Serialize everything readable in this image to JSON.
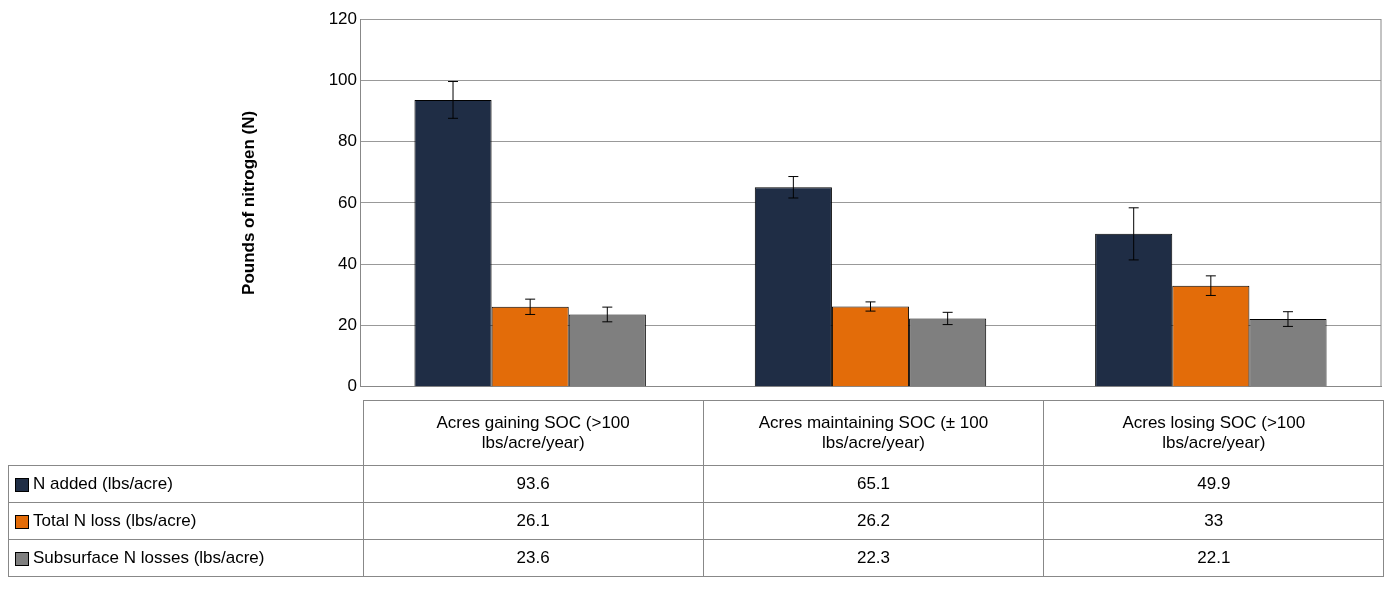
{
  "chart_data": {
    "type": "bar",
    "ylabel": "Pounds of nitrogen (N)",
    "categories": [
      "Acres gaining SOC (>100 lbs/acre/year)",
      "Acres maintaining SOC (± 100 lbs/acre/year)",
      "Acres losing SOC (>100 lbs/acre/year)"
    ],
    "series": [
      {
        "name": "N added (lbs/acre)",
        "color": "#1f2d45",
        "values": [
          93.6,
          65.1,
          49.9
        ],
        "errors": [
          6,
          3.5,
          8.5
        ]
      },
      {
        "name": "Total N loss (lbs/acre)",
        "color": "#e36c09",
        "values": [
          26.1,
          26.2,
          33
        ],
        "errors": [
          2.5,
          1.5,
          3.2
        ]
      },
      {
        "name": "Subsurface N losses (lbs/acre)",
        "color": "#7f7f7f",
        "values": [
          23.6,
          22.3,
          22.1
        ],
        "errors": [
          2.4,
          2,
          2.4
        ]
      }
    ],
    "ylim": [
      0,
      120
    ],
    "yticks": [
      0,
      20,
      40,
      60,
      80,
      100,
      120
    ],
    "grid": "y",
    "legend": "bottom",
    "data_labels": true
  }
}
